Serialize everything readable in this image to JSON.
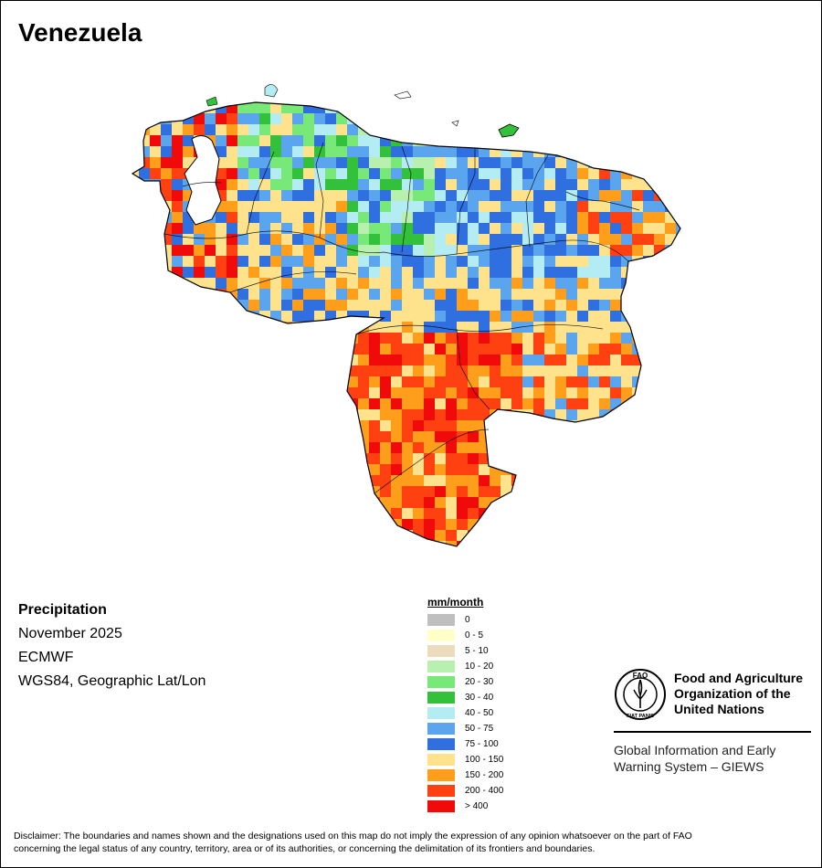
{
  "title": "Venezuela",
  "info": {
    "variable": "Precipitation",
    "period": "November 2025",
    "source": "ECMWF",
    "projection": "WGS84, Geographic Lat/Lon"
  },
  "legend": {
    "title": "mm/month",
    "items": [
      {
        "label": "0",
        "color": "#bfbfbf"
      },
      {
        "label": "0 - 5",
        "color": "#ffffc8"
      },
      {
        "label": "5 - 10",
        "color": "#ecdcbc"
      },
      {
        "label": "10 - 20",
        "color": "#b8f0b0"
      },
      {
        "label": "20 - 30",
        "color": "#78e878"
      },
      {
        "label": "30 - 40",
        "color": "#33c13c"
      },
      {
        "label": "40 - 50",
        "color": "#b4ecf4"
      },
      {
        "label": "50 - 75",
        "color": "#5aa5ee"
      },
      {
        "label": "75 - 100",
        "color": "#2f6fe0"
      },
      {
        "label": "100 - 150",
        "color": "#ffe38c"
      },
      {
        "label": "150 - 200",
        "color": "#ff9e1a"
      },
      {
        "label": "200 - 400",
        "color": "#ff4010"
      },
      {
        "label": "> 400",
        "color": "#f00a0a"
      }
    ]
  },
  "logo": {
    "org_line1": "Food and Agriculture",
    "org_line2": "Organization of the",
    "org_line3": "United Nations",
    "giews_line1": "Global Information and Early",
    "giews_line2": "Warning System – GIEWS",
    "emblem_text": "FAO",
    "emblem_motto": "FIAT PANIS"
  },
  "disclaimer_line1": "Disclaimer: The boundaries and names shown and the designations used on this map do not imply the expression of any opinion whatsoever on the part of FAO",
  "disclaimer_line2": "concerning the legal status of any country, territory, area or of its authorities, or concerning the delimitation of its frontiers and boundaries."
}
